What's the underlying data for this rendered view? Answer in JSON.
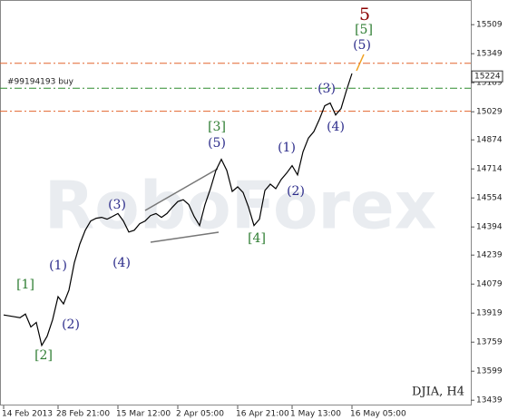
{
  "chart_data": {
    "type": "line",
    "watermark": "RoboForex",
    "instrument": "DJIA, H4",
    "order_label": "#99194193 buy",
    "last_price": 15224,
    "color": "#000000",
    "categories": [
      "14 Feb 2013",
      null,
      null,
      null,
      null,
      null,
      null,
      null,
      null,
      null,
      "28 Feb 21:00",
      null,
      null,
      null,
      null,
      null,
      null,
      null,
      null,
      null,
      null,
      "15 Mar 12:00",
      null,
      null,
      null,
      null,
      null,
      null,
      null,
      null,
      null,
      null,
      "2 Apr 05:00",
      null,
      null,
      null,
      null,
      null,
      null,
      null,
      null,
      null,
      null,
      "16 Apr 21:00",
      null,
      null,
      null,
      null,
      null,
      null,
      null,
      null,
      null,
      "1 May 13:00",
      null,
      null,
      null,
      null,
      null,
      null,
      null,
      null,
      null,
      null,
      "16 May 05:00"
    ],
    "values": [
      13909,
      13904,
      13899,
      13894,
      13914,
      13843,
      13868,
      13741,
      13792,
      13883,
      14010,
      13970,
      14046,
      14198,
      14300,
      14376,
      14427,
      14442,
      14447,
      14437,
      14452,
      14468,
      14427,
      14366,
      14376,
      14412,
      14427,
      14457,
      14468,
      14447,
      14468,
      14503,
      14534,
      14544,
      14518,
      14452,
      14402,
      14518,
      14605,
      14706,
      14767,
      14706,
      14590,
      14615,
      14584,
      14503,
      14402,
      14437,
      14595,
      14630,
      14605,
      14656,
      14691,
      14732,
      14681,
      14808,
      14884,
      14920,
      14986,
      15062,
      15077,
      15011,
      15047,
      15148,
      15240
    ],
    "levels": [
      {
        "value": 15296,
        "color": "#e2652e"
      },
      {
        "value": 15159,
        "color": "#2e8b2e"
      },
      {
        "value": 15032,
        "color": "#e2652e"
      }
    ],
    "waves": [
      {
        "text": "[1]",
        "color": "#2e7d32"
      },
      {
        "text": "[2]",
        "color": "#2e7d32"
      },
      {
        "text": "(1)",
        "color": "#2b2b8a"
      },
      {
        "text": "(2)",
        "color": "#2b2b8a"
      },
      {
        "text": "(3)",
        "color": "#2b2b8a"
      },
      {
        "text": "(4)",
        "color": "#2b2b8a"
      },
      {
        "text": "[3]",
        "color": "#2e7d32"
      },
      {
        "text": "(5)",
        "color": "#2b2b8a"
      },
      {
        "text": "[4]",
        "color": "#2e7d32"
      },
      {
        "text": "(1)",
        "color": "#2b2b8a"
      },
      {
        "text": "(2)",
        "color": "#2b2b8a"
      },
      {
        "text": "(3)",
        "color": "#2b2b8a"
      },
      {
        "text": "(4)",
        "color": "#2b2b8a"
      },
      {
        "text": "(5)",
        "color": "#2b2b8a"
      },
      {
        "text": "[5]",
        "color": "#2e7d32"
      },
      {
        "text": "5",
        "color": "#8b0000"
      }
    ],
    "ylim": [
      13410,
      15635
    ],
    "yticks": [
      13439,
      13599,
      13759,
      13919,
      14079,
      14239,
      14394,
      14554,
      14714,
      14874,
      15029,
      15189,
      15349,
      15509
    ]
  }
}
